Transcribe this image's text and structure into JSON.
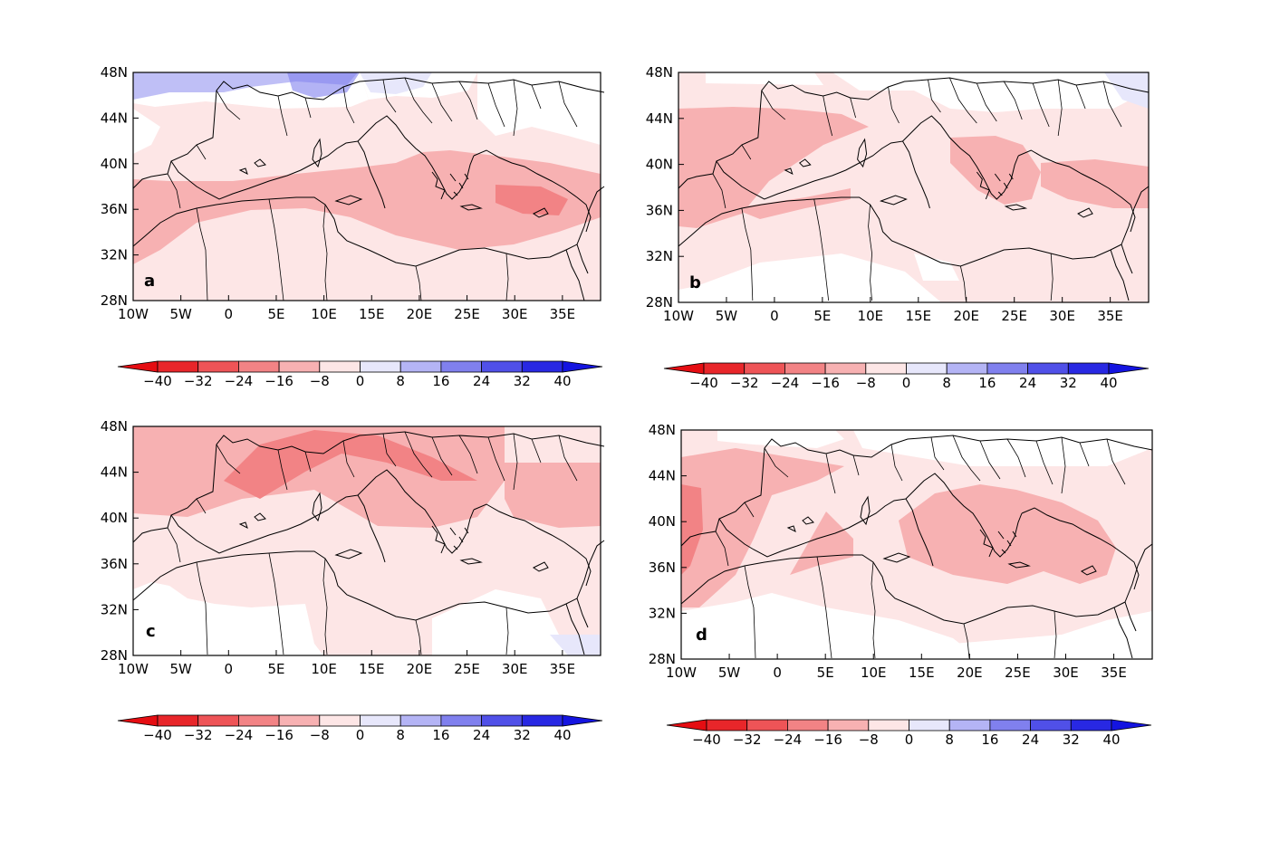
{
  "figure": {
    "panels": [
      {
        "letter": "a"
      },
      {
        "letter": "b"
      },
      {
        "letter": "c"
      },
      {
        "letter": "d"
      }
    ],
    "lat_ticks": [
      "48N",
      "44N",
      "40N",
      "36N",
      "32N",
      "28N"
    ],
    "lon_ticks": [
      "10W",
      "5W",
      "0",
      "5E",
      "10E",
      "15E",
      "20E",
      "25E",
      "30E",
      "35E"
    ],
    "colorbar": {
      "labels": [
        "−40",
        "−32",
        "−24",
        "−16",
        "−8",
        "0",
        "8",
        "16",
        "24",
        "32",
        "40"
      ],
      "colors": [
        "#e8262a",
        "#ee5457",
        "#f28385",
        "#f7b1b2",
        "#fde6e6",
        "#e7e7fb",
        "#b4b4f5",
        "#8080ee",
        "#5050e8",
        "#2828e3"
      ],
      "low_arrow_color": "#e50d12",
      "high_arrow_color": "#1414e0"
    },
    "fills": {
      "weak_neg": "#fde6e6",
      "mid_neg": "#f7b1b2",
      "strong_neg": "#f28385",
      "weak_pos": "#e7e7fb",
      "mid_pos": "#b4b4f5"
    }
  }
}
